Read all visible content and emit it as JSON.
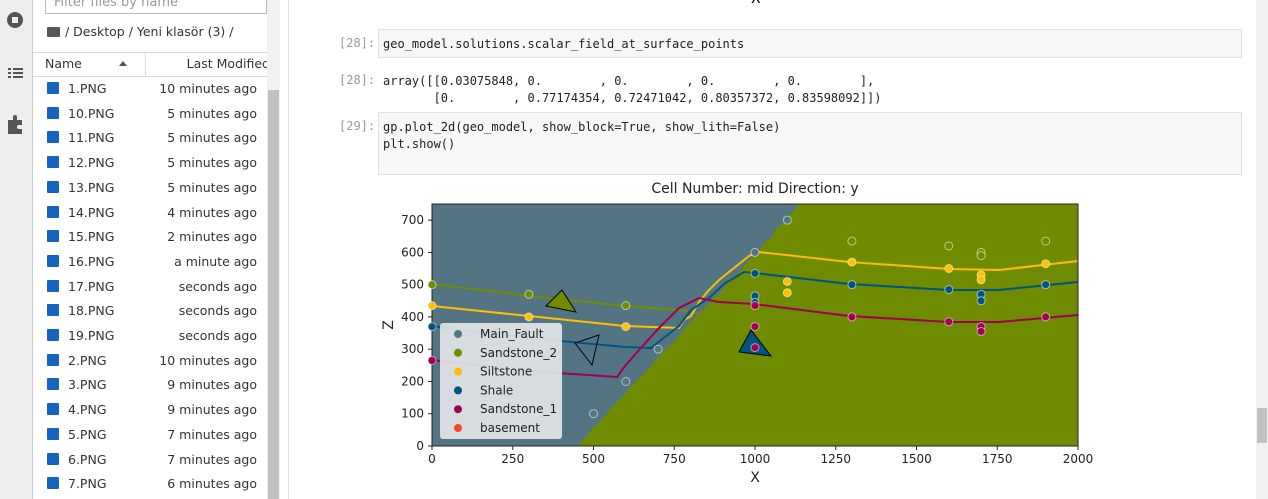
{
  "sidebar": {
    "filter_placeholder": "Filter files by name",
    "breadcrumb": "/ Desktop / Yeni klasör (3) /",
    "columns": [
      "Name",
      "Last Modified"
    ],
    "files": [
      {
        "name": "1.PNG",
        "modified": "10 minutes ago"
      },
      {
        "name": "10.PNG",
        "modified": "5 minutes ago"
      },
      {
        "name": "11.PNG",
        "modified": "5 minutes ago"
      },
      {
        "name": "12.PNG",
        "modified": "5 minutes ago"
      },
      {
        "name": "13.PNG",
        "modified": "5 minutes ago"
      },
      {
        "name": "14.PNG",
        "modified": "4 minutes ago"
      },
      {
        "name": "15.PNG",
        "modified": "2 minutes ago"
      },
      {
        "name": "16.PNG",
        "modified": "a minute ago"
      },
      {
        "name": "17.PNG",
        "modified": "seconds ago"
      },
      {
        "name": "18.PNG",
        "modified": "seconds ago"
      },
      {
        "name": "19.PNG",
        "modified": "seconds ago"
      },
      {
        "name": "2.PNG",
        "modified": "10 minutes ago"
      },
      {
        "name": "3.PNG",
        "modified": "9 minutes ago"
      },
      {
        "name": "4.PNG",
        "modified": "9 minutes ago"
      },
      {
        "name": "5.PNG",
        "modified": "7 minutes ago"
      },
      {
        "name": "6.PNG",
        "modified": "7 minutes ago"
      },
      {
        "name": "7.PNG",
        "modified": "6 minutes ago"
      }
    ]
  },
  "notebook": {
    "prev_axis_label": "X",
    "cells": [
      {
        "prompt": "[28]:",
        "kind": "input",
        "lines": [
          "geo_model.solutions.scalar_field_at_surface_points"
        ]
      },
      {
        "prompt": "[28]:",
        "kind": "output",
        "lines": [
          "array([[0.03075848, 0.        , 0.        , 0.        , 0.        ],",
          "       [0.        , 0.77174354, 0.72471042, 0.80357372, 0.83598092]])"
        ]
      },
      {
        "prompt": "[29]:",
        "kind": "input",
        "lines": [
          "gp.plot_2d(geo_model, show_block=True, show_lith=False)",
          "plt.show()"
        ]
      }
    ]
  },
  "chart_data": {
    "type": "scatter",
    "title": "Cell Number: mid Direction: y",
    "x_label": "X",
    "y_label": "Z",
    "xlim": [
      0,
      2000
    ],
    "ylim": [
      0,
      750
    ],
    "xticks": [
      0,
      250,
      500,
      750,
      1000,
      1250,
      1500,
      1750,
      2000
    ],
    "yticks": [
      0,
      100,
      200,
      300,
      400,
      500,
      600,
      700
    ],
    "legend": "lower left",
    "series": [
      {
        "name": "Main_Fault",
        "color": "#527682",
        "x": [
          500,
          600,
          700,
          1000,
          1100
        ],
        "y": [
          100,
          200,
          300,
          600,
          700
        ]
      },
      {
        "name": "Sandstone_2",
        "color": "#728c00",
        "x": [
          0,
          300,
          600,
          1300,
          1600,
          1700,
          1700,
          1900
        ],
        "y": [
          500,
          470,
          435,
          635,
          620,
          600,
          590,
          635
        ]
      },
      {
        "name": "Siltstone",
        "color": "#ffbe00",
        "x": [
          0,
          300,
          600,
          1100,
          1100,
          1300,
          1600,
          1700,
          1700,
          1900
        ],
        "y": [
          435,
          400,
          370,
          510,
          475,
          570,
          550,
          530,
          515,
          565
        ]
      },
      {
        "name": "Shale",
        "color": "#015482",
        "x": [
          0,
          1000,
          1000,
          1000,
          1300,
          1600,
          1700,
          1700,
          1900
        ],
        "y": [
          370,
          535,
          465,
          445,
          500,
          485,
          470,
          450,
          500
        ]
      },
      {
        "name": "Sandstone_1",
        "color": "#9f0052",
        "x": [
          0,
          1000,
          1000,
          1000,
          1300,
          1600,
          1700,
          1700,
          1900
        ],
        "y": [
          265,
          435,
          370,
          305,
          400,
          385,
          370,
          355,
          400
        ]
      },
      {
        "name": "basement",
        "color": "#ee4a2d",
        "x": [],
        "y": []
      }
    ]
  }
}
